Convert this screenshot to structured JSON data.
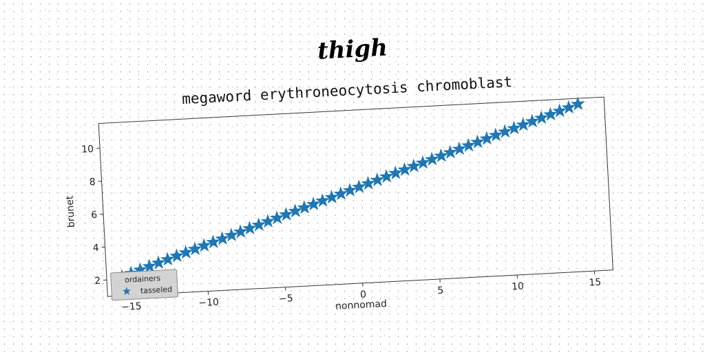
{
  "brand": {
    "text": "thigh"
  },
  "chart_data": {
    "type": "scatter",
    "title": "megaword erythroneocytosis chromoblast",
    "xlabel": "nonnomad",
    "ylabel": "brunet",
    "xlim": [
      -16.5,
      16.2
    ],
    "ylim": [
      1.0,
      11.5
    ],
    "xticks": [
      -15,
      -10,
      -5,
      0,
      5,
      10,
      15
    ],
    "xtick_labels": [
      "−15",
      "−10",
      "−5",
      "0",
      "5",
      "10",
      "15"
    ],
    "yticks": [
      2,
      4,
      6,
      8,
      10
    ],
    "ytick_labels": [
      "2",
      "4",
      "6",
      "8",
      "10"
    ],
    "grid": false,
    "marker": "star",
    "series": [
      {
        "name": "tasseled",
        "color": "#1f77b4",
        "x_start": -15.5,
        "x_end": 14.5,
        "x_step": 0.6,
        "y_intercept": 6.8,
        "y_slope": 0.3
      }
    ],
    "legend": {
      "title": "ordainers",
      "placement": "lower-left"
    }
  }
}
